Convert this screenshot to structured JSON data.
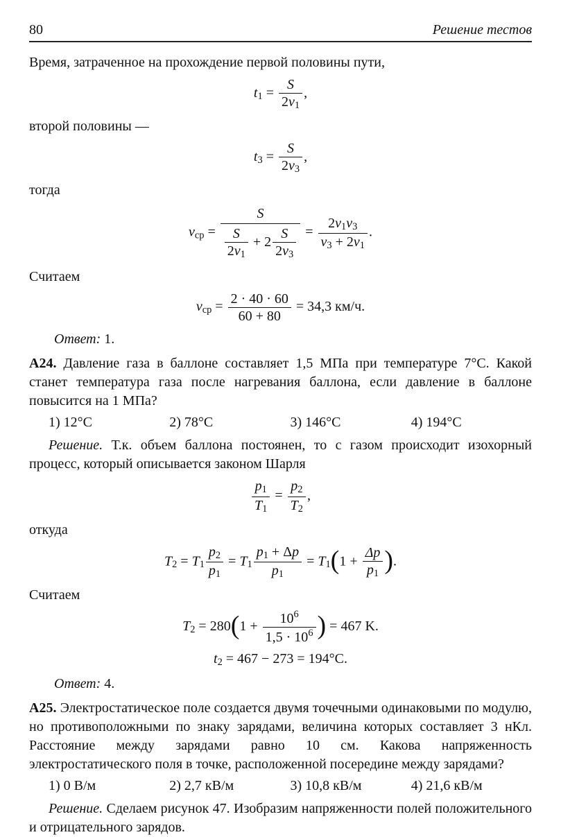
{
  "header": {
    "page_number": "80",
    "section_title": "Решение тестов"
  },
  "p1": "Время, затраченное на прохождение первой половины пути,",
  "eq1": {
    "lhs_var": "t",
    "lhs_sub": "1",
    "num": "S",
    "den_a": "2",
    "den_var": "v",
    "den_sub": "1"
  },
  "p2": "второй половины —",
  "eq2": {
    "lhs_var": "t",
    "lhs_sub": "3",
    "num": "S",
    "den_a": "2",
    "den_var": "v",
    "den_sub": "3"
  },
  "p3": "тогда",
  "eq3": {
    "lhs_var": "v",
    "lhs_sub": "ср",
    "mid_num": "S",
    "mid_den_t1_num": "S",
    "mid_den_t1_den_a": "2",
    "mid_den_t1_den_v": "v",
    "mid_den_t1_den_sub": "1",
    "mid_den_plus": " + 2",
    "mid_den_t2_num": "S",
    "mid_den_t2_den_a": "2",
    "mid_den_t2_den_v": "v",
    "mid_den_t2_den_sub": "3",
    "rhs_num_a": "2",
    "rhs_num_v1": "v",
    "rhs_num_s1": "1",
    "rhs_num_v2": "v",
    "rhs_num_s2": "3",
    "rhs_den_v1": "v",
    "rhs_den_s1": "3",
    "rhs_den_plus": " + 2",
    "rhs_den_v2": "v",
    "rhs_den_s2": "1"
  },
  "p4": "Считаем",
  "eq4": {
    "lhs_var": "v",
    "lhs_sub": "ср",
    "num": "2 · 40 · 60",
    "den": "60 + 80",
    "result": " = 34,3 км/ч."
  },
  "ans1": {
    "label": "Ответ:",
    "val": "  1."
  },
  "a24": {
    "label": "А24.",
    "text": " Давление газа в баллоне составляет 1,5 МПа при температуре 7°С. Какой станет температура газа после нагревания баллона, если давление в баллоне повысится на 1 МПа?",
    "opts": {
      "o1": "1)  12°С",
      "o2": "2)  78°С",
      "o3": "3)  146°С",
      "o4": "4)  194°С"
    },
    "sol_label": "Решение.",
    "sol_text": " Т.к. объем баллона постоянен, то с газом происходит изохорный процесс, который описывается законом Шарля"
  },
  "eq5": {
    "l_num_v": "p",
    "l_num_s": "1",
    "l_den_v": "T",
    "l_den_s": "1",
    "r_num_v": "p",
    "r_num_s": "2",
    "r_den_v": "T",
    "r_den_s": "2"
  },
  "p5": "откуда",
  "eq6": {
    "lhs_v": "T",
    "lhs_s": "2",
    "t1_v": "T",
    "t1_s": "1",
    "f1_num_v": "p",
    "f1_num_s": "2",
    "f1_den_v": "p",
    "f1_den_s": "1",
    "f2_num_a": "p",
    "f2_num_as": "1",
    "f2_num_plus": " + Δ",
    "f2_num_b": "p",
    "f2_den_v": "p",
    "f2_den_s": "1",
    "pf_one": "1 + ",
    "pf_num": "Δp",
    "pf_den_v": "p",
    "pf_den_s": "1"
  },
  "p6": "Считаем",
  "eq7": {
    "lhs_v": "T",
    "lhs_s": "2",
    "coef": " = 280",
    "one": "1 + ",
    "num": "10",
    "num_sup": "6",
    "den_a": "1,5 · 10",
    "den_sup": "6",
    "res": " = 467 K."
  },
  "eq8": {
    "lhs_v": "t",
    "lhs_s": "2",
    "rhs": " = 467 − 273 = 194°C."
  },
  "ans2": {
    "label": "Ответ:",
    "val": "  4."
  },
  "a25": {
    "label": "А25.",
    "text": " Электростатическое поле создается двумя точечными одинаковыми по модулю, но противоположными по знаку зарядами, величина которых составляет 3 нКл. Расстояние между зарядами равно 10 см. Какова напряженность электростатического поля в точке, расположенной посередине между зарядами?",
    "opts": {
      "o1": "1)  0 В/м",
      "o2": "2)  2,7 кВ/м",
      "o3": "3)  10,8 кВ/м",
      "o4": "4)  21,6 кВ/м"
    },
    "sol_label": "Решение.",
    "sol_text": " Сделаем рисунок 47. Изобразим напряженности полей положительного и отрицательного зарядов."
  }
}
